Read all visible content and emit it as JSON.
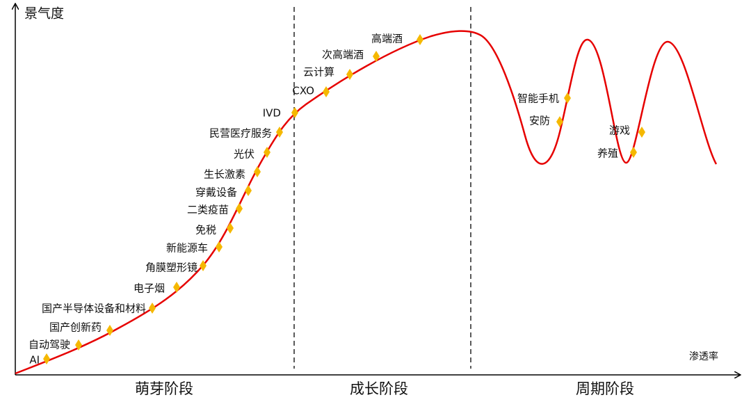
{
  "axes": {
    "y_label": "景气度",
    "x_label": "渗透率"
  },
  "stages": [
    "萌芽阶段",
    "成长阶段",
    "周期阶段"
  ],
  "points": [
    {
      "label": "AI"
    },
    {
      "label": "自动驾驶"
    },
    {
      "label": "国产创新药"
    },
    {
      "label": "国产半导体设备和材料"
    },
    {
      "label": "电子烟"
    },
    {
      "label": "角膜塑形镜"
    },
    {
      "label": "新能源车"
    },
    {
      "label": "免税"
    },
    {
      "label": "二类疫苗"
    },
    {
      "label": "穿戴设备"
    },
    {
      "label": "生长激素"
    },
    {
      "label": "光伏"
    },
    {
      "label": "民营医疗服务"
    },
    {
      "label": "IVD"
    },
    {
      "label": "CXO"
    },
    {
      "label": "云计算"
    },
    {
      "label": "次高端酒"
    },
    {
      "label": "高端酒"
    },
    {
      "label": "智能手机"
    },
    {
      "label": "安防"
    },
    {
      "label": "游戏"
    },
    {
      "label": "养殖"
    }
  ]
}
